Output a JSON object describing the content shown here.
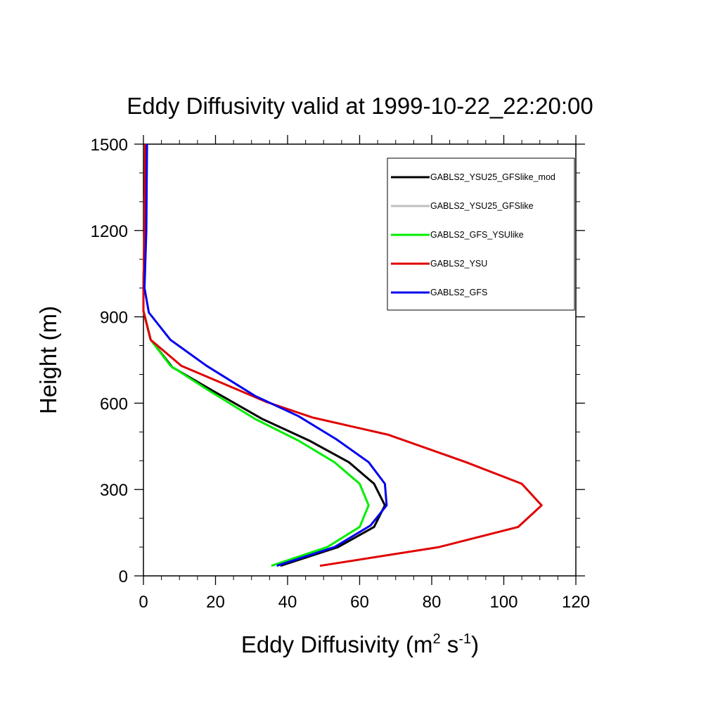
{
  "chart_data": {
    "type": "line",
    "title": "Eddy Diffusivity valid at 1999-10-22_22:20:00",
    "xlabel": "Eddy Diffusivity (m",
    "xlabel_sup1": "2",
    "xlabel_mid": " s",
    "xlabel_sup2": "-1",
    "xlabel_end": ")",
    "ylabel": "Height (m)",
    "xlim": [
      0,
      120
    ],
    "ylim": [
      0,
      1500
    ],
    "xticks": [
      0,
      20,
      40,
      60,
      80,
      100,
      120
    ],
    "yticks": [
      0,
      300,
      600,
      900,
      1200,
      1500
    ],
    "grid": false,
    "legend_position": "top-right",
    "series": [
      {
        "name": "GABLS2_YSU25_GFSlike_mod",
        "color": "#000000",
        "points": [
          [
            38,
            35
          ],
          [
            54,
            100
          ],
          [
            64,
            170
          ],
          [
            67,
            245
          ],
          [
            64,
            320
          ],
          [
            57,
            395
          ],
          [
            46,
            470
          ],
          [
            33,
            545
          ],
          [
            19,
            645
          ],
          [
            8,
            725
          ],
          [
            2,
            820
          ],
          [
            0,
            920
          ],
          [
            0,
            1000
          ],
          [
            0.3,
            1200
          ],
          [
            0.5,
            1500
          ]
        ]
      },
      {
        "name": "GABLS2_YSU25_GFSlike",
        "color": "#bfbfbf",
        "points": [
          [
            38,
            35
          ],
          [
            54,
            100
          ],
          [
            64,
            170
          ],
          [
            67,
            245
          ],
          [
            64,
            320
          ],
          [
            57,
            395
          ],
          [
            46,
            470
          ],
          [
            33,
            545
          ],
          [
            19,
            645
          ],
          [
            8,
            725
          ],
          [
            2,
            820
          ],
          [
            0,
            920
          ],
          [
            0,
            1000
          ],
          [
            0.3,
            1200
          ],
          [
            0.5,
            1500
          ]
        ]
      },
      {
        "name": "GABLS2_GFS_YSUlike",
        "color": "#00ee00",
        "points": [
          [
            35.5,
            35
          ],
          [
            51,
            100
          ],
          [
            60,
            170
          ],
          [
            62.5,
            245
          ],
          [
            60,
            320
          ],
          [
            53,
            395
          ],
          [
            43,
            470
          ],
          [
            31,
            545
          ],
          [
            18,
            645
          ],
          [
            7.5,
            730
          ],
          [
            2,
            820
          ],
          [
            0,
            920
          ],
          [
            0,
            1000
          ],
          [
            0.3,
            1200
          ],
          [
            0.5,
            1500
          ]
        ]
      },
      {
        "name": "GABLS2_YSU",
        "color": "#e00000",
        "points": [
          [
            49,
            35
          ],
          [
            82,
            100
          ],
          [
            104,
            170
          ],
          [
            110.5,
            245
          ],
          [
            105,
            320
          ],
          [
            89.5,
            395
          ],
          [
            68,
            490
          ],
          [
            47,
            550
          ],
          [
            34,
            605
          ],
          [
            26.5,
            645
          ],
          [
            10.5,
            730
          ],
          [
            2,
            820
          ],
          [
            0,
            920
          ],
          [
            0,
            1000
          ],
          [
            0.3,
            1200
          ],
          [
            0.5,
            1500
          ]
        ]
      },
      {
        "name": "GABLS2_GFS",
        "color": "#0000ee",
        "points": [
          [
            37,
            35
          ],
          [
            53,
            100
          ],
          [
            63,
            175
          ],
          [
            67.5,
            245
          ],
          [
            67,
            320
          ],
          [
            62.5,
            395
          ],
          [
            53.5,
            475
          ],
          [
            43,
            555
          ],
          [
            31,
            625
          ],
          [
            17.5,
            730
          ],
          [
            7.5,
            820
          ],
          [
            1.5,
            915
          ],
          [
            0.3,
            1000
          ],
          [
            0.8,
            1200
          ],
          [
            1,
            1500
          ]
        ]
      }
    ]
  }
}
